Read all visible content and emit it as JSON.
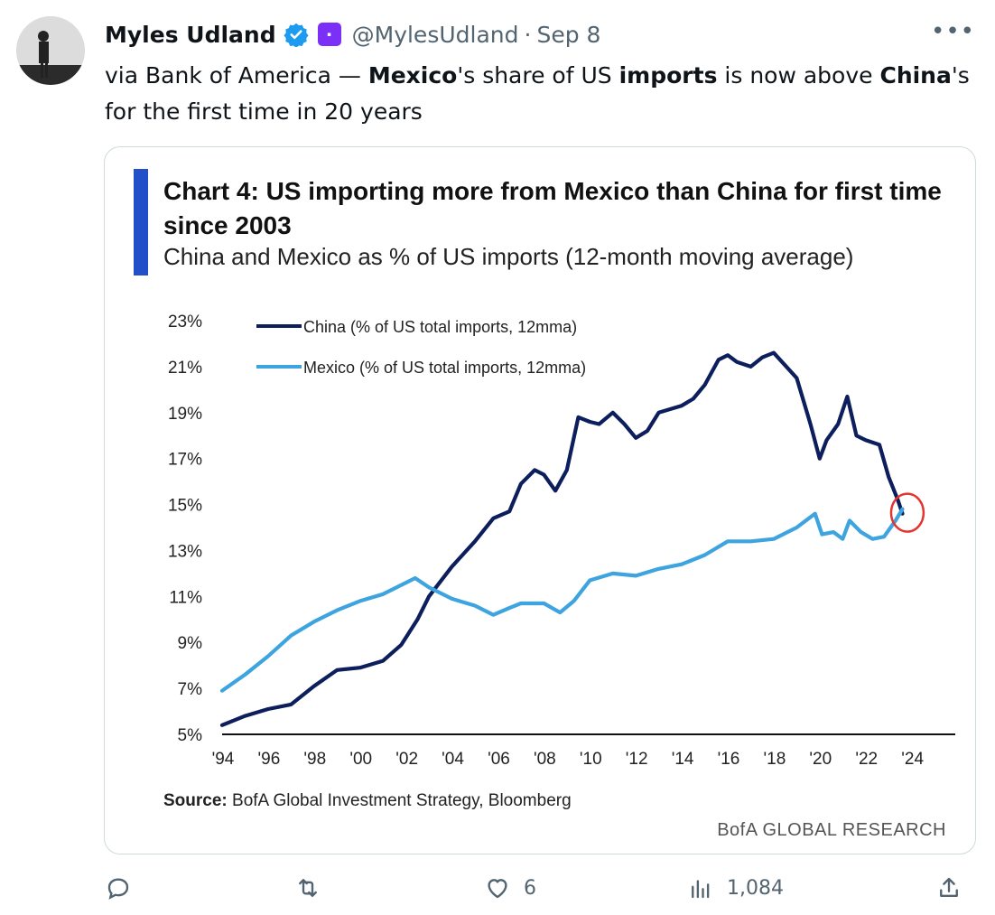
{
  "tweet": {
    "author_name": "Myles Udland",
    "handle": "@MylesUdland",
    "separator": "·",
    "date": "Sep 8",
    "more_icon": "more-icon",
    "text_segments": [
      {
        "text": "via Bank of America — ",
        "bold": false
      },
      {
        "text": "Mexico",
        "bold": true
      },
      {
        "text": "'s share of US ",
        "bold": false
      },
      {
        "text": "imports",
        "bold": true
      },
      {
        "text": " is now above ",
        "bold": false
      },
      {
        "text": "China",
        "bold": true
      },
      {
        "text": "'s for the first time in 20 years",
        "bold": false
      }
    ]
  },
  "card": {
    "title": "Chart 4: US importing more from Mexico than China for first time since 2003",
    "subtitle": "China and Mexico as % of US imports (12-month moving average)",
    "source_label": "Source:",
    "source_text": " BofA Global Investment Strategy, Bloomberg",
    "brand": "BofA GLOBAL RESEARCH"
  },
  "chart_data": {
    "type": "line",
    "title": "Chart 4: US importing more from Mexico than China for first time since 2003",
    "subtitle": "China and Mexico as % of US imports (12-month moving average)",
    "x_tick_labels": [
      "'94",
      "'96",
      "'98",
      "'00",
      "'02",
      "'04",
      "'06",
      "'08",
      "'10",
      "'12",
      "'14",
      "'16",
      "'18",
      "'20",
      "'22",
      "'24"
    ],
    "x_ticks": [
      1994,
      1996,
      1998,
      2000,
      2002,
      2004,
      2006,
      2008,
      2010,
      2012,
      2014,
      2016,
      2018,
      2020,
      2022,
      2024
    ],
    "xlim": [
      1994,
      2026
    ],
    "y_tick_labels": [
      "5%",
      "7%",
      "9%",
      "11%",
      "13%",
      "15%",
      "17%",
      "19%",
      "21%",
      "23%"
    ],
    "y_ticks": [
      5,
      7,
      9,
      11,
      13,
      15,
      17,
      19,
      21,
      23
    ],
    "ylim": [
      5,
      23
    ],
    "legend_position": "top-left",
    "colors": {
      "china": "#0c1e5c",
      "mexico": "#3ea4e0",
      "highlight": "#e3342f"
    },
    "series": [
      {
        "name": "China (% of US total imports, 12mma)",
        "color": "#0c1e5c",
        "points": [
          [
            1994.0,
            5.4
          ],
          [
            1995.0,
            5.8
          ],
          [
            1996.0,
            6.1
          ],
          [
            1997.0,
            6.3
          ],
          [
            1998.0,
            7.1
          ],
          [
            1999.0,
            7.8
          ],
          [
            2000.0,
            7.9
          ],
          [
            2001.0,
            8.2
          ],
          [
            2001.8,
            8.9
          ],
          [
            2002.5,
            10.0
          ],
          [
            2003.0,
            11.0
          ],
          [
            2004.0,
            12.3
          ],
          [
            2005.0,
            13.4
          ],
          [
            2005.8,
            14.4
          ],
          [
            2006.5,
            14.7
          ],
          [
            2007.0,
            15.9
          ],
          [
            2007.6,
            16.5
          ],
          [
            2008.0,
            16.3
          ],
          [
            2008.5,
            15.6
          ],
          [
            2009.0,
            16.5
          ],
          [
            2009.5,
            18.8
          ],
          [
            2010.0,
            18.6
          ],
          [
            2010.4,
            18.5
          ],
          [
            2011.0,
            19.0
          ],
          [
            2011.5,
            18.5
          ],
          [
            2012.0,
            17.9
          ],
          [
            2012.5,
            18.2
          ],
          [
            2013.0,
            19.0
          ],
          [
            2014.0,
            19.3
          ],
          [
            2014.5,
            19.6
          ],
          [
            2015.0,
            20.2
          ],
          [
            2015.6,
            21.3
          ],
          [
            2016.0,
            21.5
          ],
          [
            2016.4,
            21.2
          ],
          [
            2017.0,
            21.0
          ],
          [
            2017.5,
            21.4
          ],
          [
            2018.0,
            21.6
          ],
          [
            2019.0,
            20.5
          ],
          [
            2019.6,
            18.5
          ],
          [
            2020.0,
            17.0
          ],
          [
            2020.3,
            17.8
          ],
          [
            2020.8,
            18.5
          ],
          [
            2021.2,
            19.7
          ],
          [
            2021.6,
            18.0
          ],
          [
            2022.0,
            17.8
          ],
          [
            2022.6,
            17.6
          ],
          [
            2023.0,
            16.2
          ],
          [
            2023.4,
            15.2
          ],
          [
            2023.6,
            14.6
          ]
        ]
      },
      {
        "name": "Mexico (% of US total imports, 12mma)",
        "color": "#3ea4e0",
        "points": [
          [
            1994.0,
            6.9
          ],
          [
            1995.0,
            7.6
          ],
          [
            1996.0,
            8.4
          ],
          [
            1997.0,
            9.3
          ],
          [
            1998.0,
            9.9
          ],
          [
            1999.0,
            10.4
          ],
          [
            2000.0,
            10.8
          ],
          [
            2001.0,
            11.1
          ],
          [
            2002.0,
            11.6
          ],
          [
            2002.4,
            11.8
          ],
          [
            2003.0,
            11.4
          ],
          [
            2004.0,
            10.9
          ],
          [
            2005.0,
            10.6
          ],
          [
            2005.8,
            10.2
          ],
          [
            2006.5,
            10.5
          ],
          [
            2007.0,
            10.7
          ],
          [
            2008.0,
            10.7
          ],
          [
            2008.7,
            10.3
          ],
          [
            2009.3,
            10.8
          ],
          [
            2010.0,
            11.7
          ],
          [
            2011.0,
            12.0
          ],
          [
            2012.0,
            11.9
          ],
          [
            2013.0,
            12.2
          ],
          [
            2014.0,
            12.4
          ],
          [
            2015.0,
            12.8
          ],
          [
            2016.0,
            13.4
          ],
          [
            2017.0,
            13.4
          ],
          [
            2018.0,
            13.5
          ],
          [
            2019.0,
            14.0
          ],
          [
            2019.8,
            14.6
          ],
          [
            2020.1,
            13.7
          ],
          [
            2020.6,
            13.8
          ],
          [
            2021.0,
            13.5
          ],
          [
            2021.3,
            14.3
          ],
          [
            2021.8,
            13.8
          ],
          [
            2022.3,
            13.5
          ],
          [
            2022.8,
            13.6
          ],
          [
            2023.3,
            14.3
          ],
          [
            2023.6,
            14.8
          ]
        ]
      }
    ],
    "highlight": {
      "x": 2023.5,
      "y": 14.8,
      "note": "red circle marking crossover"
    }
  },
  "actions": {
    "reply": {
      "icon": "reply-icon",
      "count": ""
    },
    "retweet": {
      "icon": "retweet-icon",
      "count": ""
    },
    "like": {
      "icon": "heart-icon",
      "count": "6"
    },
    "views": {
      "icon": "views-icon",
      "count": "1,084"
    },
    "share": {
      "icon": "share-icon"
    }
  }
}
